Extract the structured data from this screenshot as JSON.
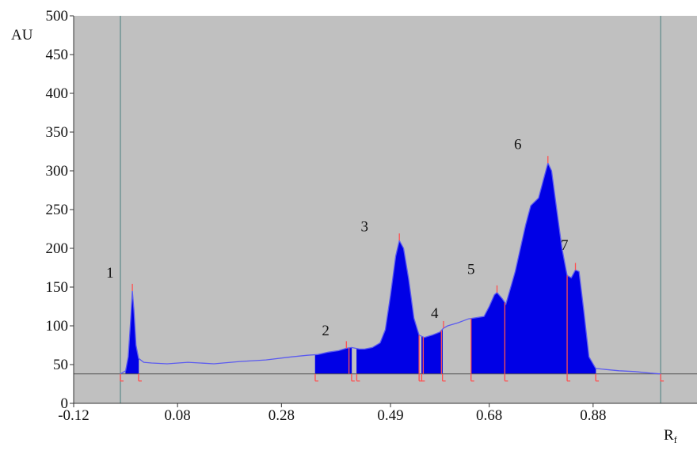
{
  "chart_data": {
    "type": "area",
    "title": "",
    "ylabel": "AU",
    "xlabel": "R",
    "xlabel_sub": "f",
    "xlim": [
      -0.12,
      1.08
    ],
    "ylim": [
      0,
      500
    ],
    "x_ticks": [
      {
        "value": -0.12,
        "label": "-0.12"
      },
      {
        "value": 0.08,
        "label": "0.08"
      },
      {
        "value": 0.28,
        "label": "0.28"
      },
      {
        "value": 0.49,
        "label": "0.49"
      },
      {
        "value": 0.68,
        "label": "0.68"
      },
      {
        "value": 0.88,
        "label": "0.88"
      }
    ],
    "y_ticks": [
      {
        "value": 0,
        "label": "0"
      },
      {
        "value": 50,
        "label": "50"
      },
      {
        "value": 100,
        "label": "100"
      },
      {
        "value": 150,
        "label": "150"
      },
      {
        "value": 200,
        "label": "200"
      },
      {
        "value": 250,
        "label": "250"
      },
      {
        "value": 300,
        "label": "300"
      },
      {
        "value": 350,
        "label": "350"
      },
      {
        "value": 400,
        "label": "400"
      },
      {
        "value": 450,
        "label": "450"
      },
      {
        "value": 500,
        "label": "500"
      }
    ],
    "baseline": 38,
    "vertical_lines": [
      -0.03,
      1.01
    ],
    "background": "#c0c0c0",
    "trace_color": "#5a5af0",
    "fill_color": "#0000e6",
    "marker_color": "#ff5050",
    "trace": [
      [
        -0.03,
        38
      ],
      [
        -0.02,
        42
      ],
      [
        -0.015,
        60
      ],
      [
        -0.01,
        110
      ],
      [
        -0.007,
        145
      ],
      [
        -0.004,
        120
      ],
      [
        0.0,
        75
      ],
      [
        0.005,
        58
      ],
      [
        0.015,
        53
      ],
      [
        0.03,
        52
      ],
      [
        0.06,
        51
      ],
      [
        0.1,
        53
      ],
      [
        0.15,
        51
      ],
      [
        0.2,
        54
      ],
      [
        0.25,
        56
      ],
      [
        0.3,
        60
      ],
      [
        0.33,
        62
      ],
      [
        0.35,
        63
      ],
      [
        0.37,
        66
      ],
      [
        0.39,
        68
      ],
      [
        0.405,
        71
      ],
      [
        0.415,
        72
      ],
      [
        0.43,
        70
      ],
      [
        0.44,
        70
      ],
      [
        0.455,
        72
      ],
      [
        0.47,
        78
      ],
      [
        0.48,
        95
      ],
      [
        0.49,
        140
      ],
      [
        0.5,
        190
      ],
      [
        0.507,
        210
      ],
      [
        0.515,
        200
      ],
      [
        0.525,
        160
      ],
      [
        0.535,
        110
      ],
      [
        0.545,
        88
      ],
      [
        0.555,
        85
      ],
      [
        0.57,
        88
      ],
      [
        0.585,
        92
      ],
      [
        0.592,
        97
      ],
      [
        0.6,
        100
      ],
      [
        0.62,
        104
      ],
      [
        0.64,
        109
      ],
      [
        0.66,
        111
      ],
      [
        0.67,
        112
      ],
      [
        0.68,
        125
      ],
      [
        0.69,
        140
      ],
      [
        0.695,
        143
      ],
      [
        0.705,
        135
      ],
      [
        0.712,
        128
      ],
      [
        0.73,
        170
      ],
      [
        0.75,
        230
      ],
      [
        0.76,
        255
      ],
      [
        0.775,
        265
      ],
      [
        0.785,
        290
      ],
      [
        0.793,
        310
      ],
      [
        0.8,
        300
      ],
      [
        0.81,
        250
      ],
      [
        0.82,
        200
      ],
      [
        0.83,
        165
      ],
      [
        0.838,
        162
      ],
      [
        0.846,
        172
      ],
      [
        0.853,
        170
      ],
      [
        0.862,
        120
      ],
      [
        0.872,
        60
      ],
      [
        0.885,
        45
      ],
      [
        0.9,
        44
      ],
      [
        0.93,
        42
      ],
      [
        0.96,
        41
      ],
      [
        0.99,
        39
      ],
      [
        1.01,
        38
      ]
    ],
    "filled_regions": [
      [
        -0.02,
        0.005
      ],
      [
        0.345,
        0.415
      ],
      [
        0.425,
        0.545
      ],
      [
        0.55,
        0.59
      ],
      [
        0.645,
        0.71
      ],
      [
        0.71,
        0.83
      ],
      [
        0.83,
        0.885
      ]
    ],
    "peak_markers": [
      -0.007,
      0.405,
      0.507,
      0.592,
      0.695,
      0.793,
      0.846
    ],
    "boundary_markers": [
      -0.03,
      0.005,
      0.345,
      0.415,
      0.425,
      0.545,
      0.55,
      0.59,
      0.645,
      0.71,
      0.83,
      0.885,
      1.01
    ],
    "separator_markers": [
      0.41,
      0.545,
      0.553,
      0.588,
      0.645,
      0.71,
      0.83
    ],
    "peak_labels": [
      {
        "text": "1",
        "x": -0.05,
        "y": 162
      },
      {
        "text": "2",
        "x": 0.365,
        "y": 88
      },
      {
        "text": "3",
        "x": 0.44,
        "y": 222
      },
      {
        "text": "4",
        "x": 0.575,
        "y": 110
      },
      {
        "text": "5",
        "x": 0.645,
        "y": 167
      },
      {
        "text": "6",
        "x": 0.735,
        "y": 328
      },
      {
        "text": "7",
        "x": 0.825,
        "y": 198
      }
    ]
  }
}
